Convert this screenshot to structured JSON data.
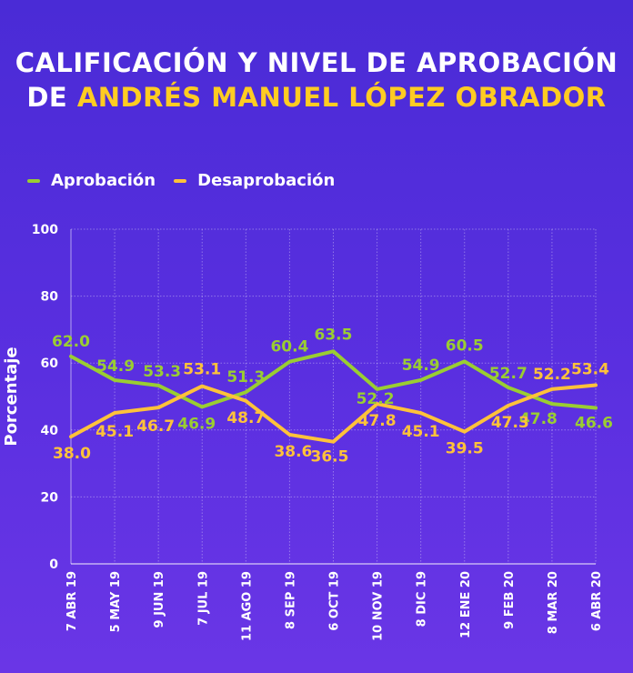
{
  "title": {
    "line1": "CALIFICACIÓN Y NIVEL DE APROBACIÓN",
    "line2_prefix": "DE ",
    "line2_highlight": "ANDRÉS MANUEL LÓPEZ OBRADOR"
  },
  "colors": {
    "background": "#5a2fe0",
    "aprobacion": "#9acd32",
    "desaprobacion": "#ffc23a",
    "title_highlight": "#ffcc22",
    "text": "#ffffff"
  },
  "chart_data": {
    "type": "line",
    "categories": [
      "7 ABR 19",
      "5 MAY 19",
      "9 JUN 19",
      "7 JUL 19",
      "11 AGO 19",
      "8 SEP 19",
      "6 OCT 19",
      "10 NOV 19",
      "8 DIC 19",
      "12 ENE 20",
      "9 FEB 20",
      "8 MAR 20",
      "6 ABR 20"
    ],
    "series": [
      {
        "name": "Aprobación",
        "values": [
          62.0,
          54.9,
          53.3,
          46.9,
          51.3,
          60.4,
          63.5,
          52.2,
          54.9,
          60.5,
          52.7,
          47.8,
          46.6
        ],
        "labels": [
          "62.0",
          "54.9",
          "53.3",
          "46.9",
          "51.3",
          "60.4",
          "63.5",
          "52.2",
          "54.9",
          "60.5",
          "52.7",
          "47.8",
          "46.6"
        ]
      },
      {
        "name": "Desaprobación",
        "values": [
          38.0,
          45.1,
          46.7,
          53.1,
          48.7,
          38.6,
          36.5,
          47.8,
          45.1,
          39.5,
          47.3,
          52.2,
          53.4
        ],
        "labels": [
          "38.0",
          "45.1",
          "46.7",
          "53.1",
          "48.7",
          "38.6",
          "36.5",
          "47.8",
          "45.1",
          "39.5",
          "47.3",
          "52.2",
          "53.4"
        ]
      }
    ],
    "ylabel": "Porcentaje",
    "ylim": [
      0,
      100
    ],
    "yticks": [
      "0",
      "20",
      "40",
      "60",
      "80",
      "100"
    ],
    "grid": true,
    "legend": "top-left"
  }
}
